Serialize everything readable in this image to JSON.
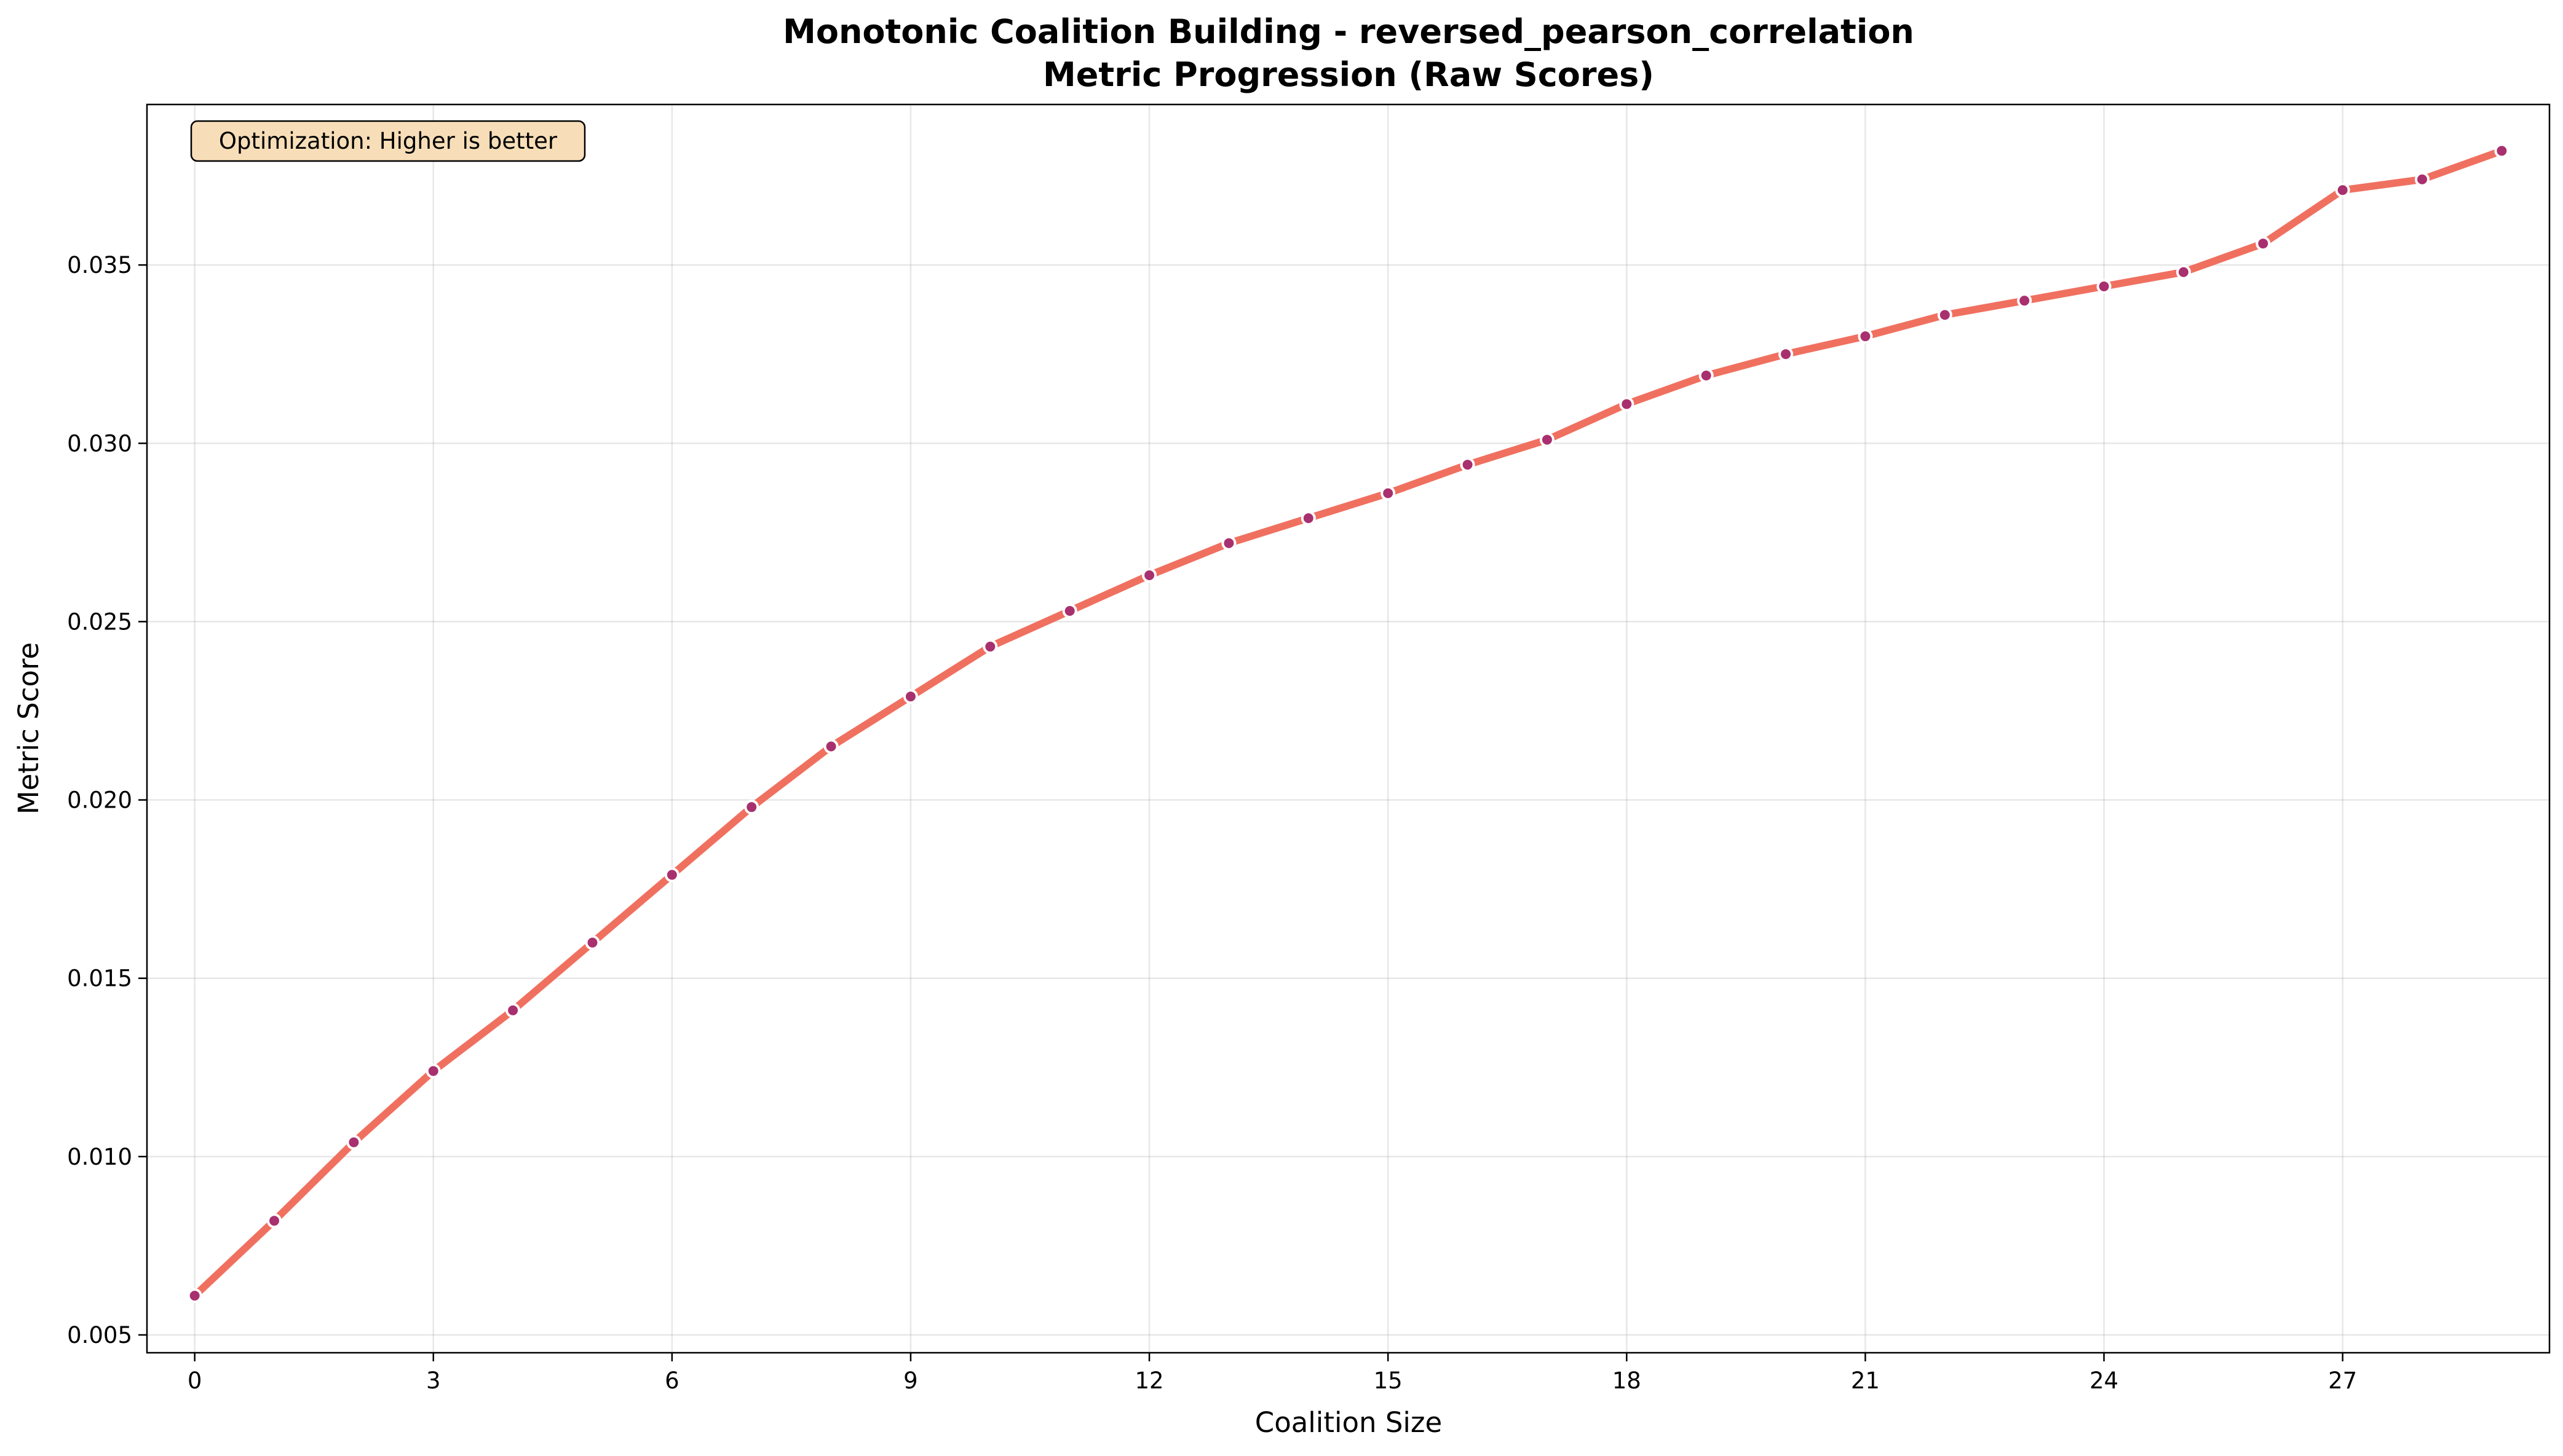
{
  "chart_data": {
    "type": "line",
    "title_line1": "Monotonic Coalition Building - reversed_pearson_correlation",
    "title_line2": "Metric Progression (Raw Scores)",
    "xlabel": "Coalition Size",
    "ylabel": "Metric Score",
    "annotation": "Optimization: Higher is better",
    "xlim": [
      -0.6,
      29.6
    ],
    "ylim": [
      0.0045,
      0.0395
    ],
    "xticks": [
      0,
      3,
      6,
      9,
      12,
      15,
      18,
      21,
      24,
      27
    ],
    "yticks": [
      0.005,
      0.01,
      0.015,
      0.02,
      0.025,
      0.03,
      0.035
    ],
    "ytick_labels": [
      "0.005",
      "0.010",
      "0.015",
      "0.020",
      "0.025",
      "0.030",
      "0.035"
    ],
    "grid": true,
    "colors": {
      "line": "#f07060",
      "marker_fill": "#a8306e",
      "marker_edge": "#ffffff",
      "annotation_bg": "#f7deb8"
    },
    "series": [
      {
        "x": [
          0,
          1,
          2,
          3,
          4,
          5,
          6,
          7,
          8,
          9,
          10,
          11,
          12,
          13,
          14,
          15,
          16,
          17,
          18,
          19,
          20,
          21,
          22,
          23,
          24,
          25,
          26,
          27,
          28,
          29
        ],
        "values": [
          0.0061,
          0.0082,
          0.0104,
          0.0124,
          0.0141,
          0.016,
          0.0179,
          0.0198,
          0.0215,
          0.0229,
          0.0243,
          0.0253,
          0.0263,
          0.0272,
          0.0279,
          0.0286,
          0.0294,
          0.0301,
          0.0311,
          0.0319,
          0.0325,
          0.033,
          0.0336,
          0.034,
          0.0344,
          0.0348,
          0.0356,
          0.0371,
          0.0374,
          0.0382
        ]
      }
    ]
  }
}
